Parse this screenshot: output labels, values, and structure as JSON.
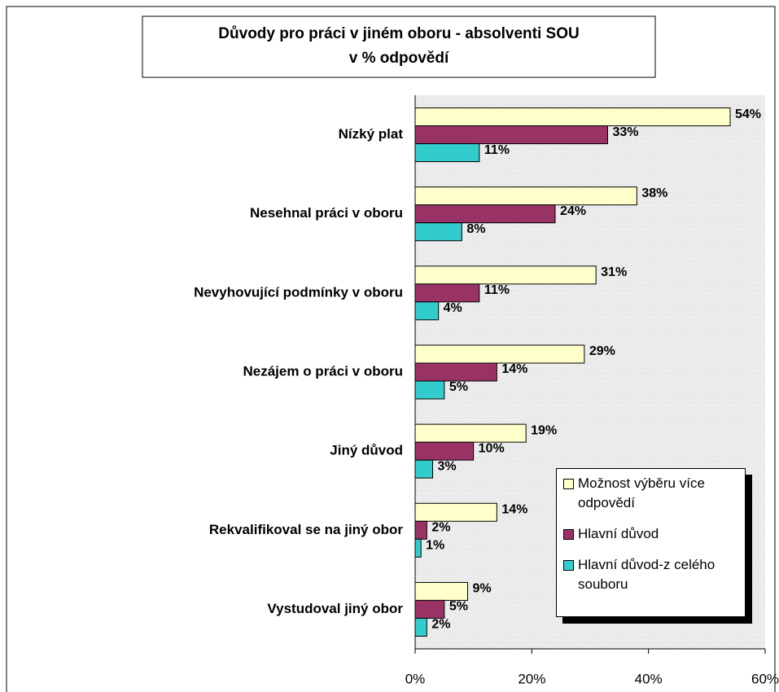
{
  "chart_data": {
    "type": "hbar",
    "title": [
      "Důvody pro práci v jiném oboru - absolventi SOU",
      "v % odpovědí"
    ],
    "categories": [
      "Nízký plat",
      "Nesehnal práci v oboru",
      "Nevyhovující podmínky v oboru",
      "Nezájem o práci v oboru",
      "Jiný důvod",
      "Rekvalifikoval se na jiný obor",
      "Vystudoval jiný obor"
    ],
    "series": [
      {
        "name": "Možnost výběru více odpovědí",
        "color": "#ffffcc",
        "values": [
          54,
          38,
          31,
          29,
          19,
          14,
          9
        ],
        "value_labels": [
          "54%",
          "38%",
          "31%",
          "29%",
          "19%",
          "14%",
          "9%"
        ]
      },
      {
        "name": "Hlavní důvod",
        "color": "#993366",
        "values": [
          33,
          24,
          11,
          14,
          10,
          2,
          5
        ],
        "value_labels": [
          "33%",
          "24%",
          "11%",
          "14%",
          "10%",
          "2%",
          "5%"
        ]
      },
      {
        "name": "Hlavní důvod-z celého souboru",
        "color": "#33cccc",
        "values": [
          11,
          8,
          4,
          5,
          3,
          1,
          2
        ],
        "value_labels": [
          "11%",
          "8%",
          "4%",
          "5%",
          "3%",
          "1%",
          "2%"
        ]
      }
    ],
    "xlim": [
      0,
      60
    ],
    "xticks": [
      {
        "value": 0,
        "label": "0%"
      },
      {
        "value": 20,
        "label": "20%"
      },
      {
        "value": 40,
        "label": "40%"
      },
      {
        "value": 60,
        "label": "60%"
      }
    ],
    "grid": false,
    "legend": "bottom-right"
  }
}
